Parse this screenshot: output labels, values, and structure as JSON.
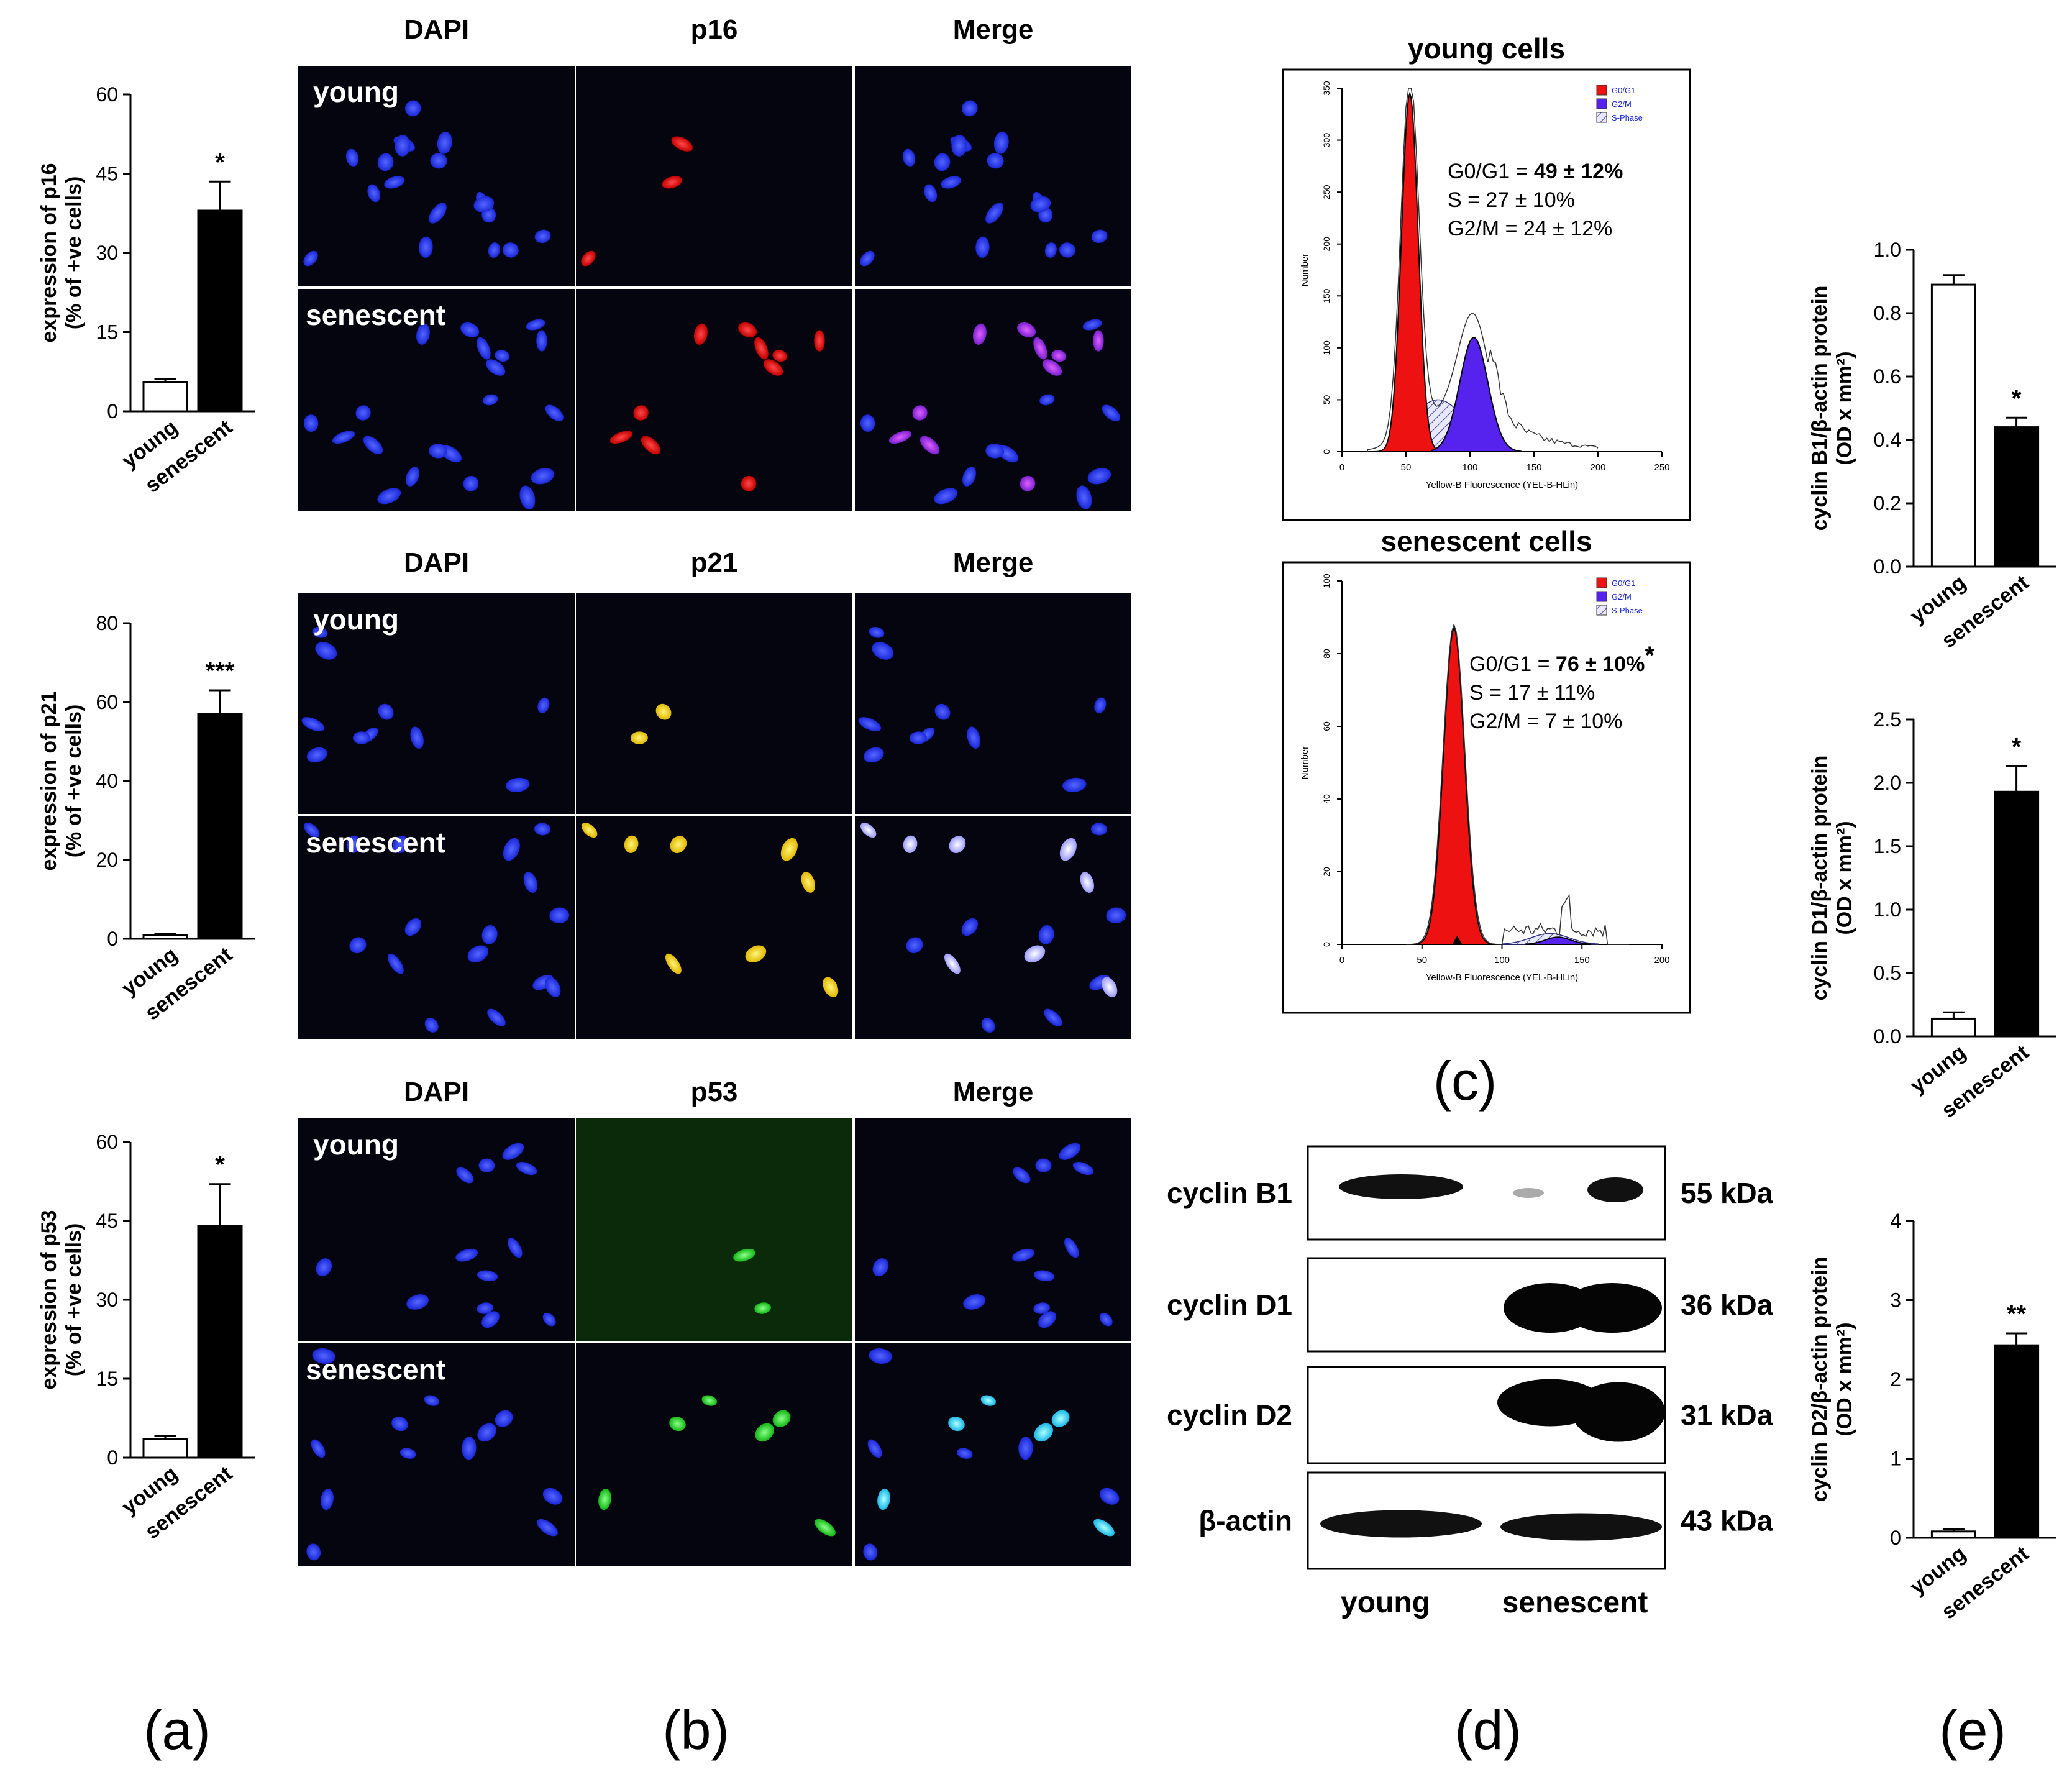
{
  "panel_letters": {
    "a": "(a)",
    "b": "(b)",
    "c": "(c)",
    "d": "(d)",
    "e": "(e)"
  },
  "microscopy": {
    "col_headers": [
      [
        "DAPI",
        "p16",
        "Merge"
      ],
      [
        "DAPI",
        "p21",
        "Merge"
      ],
      [
        "DAPI",
        "p53",
        "Merge"
      ]
    ],
    "row_labels": [
      "young",
      "senescent"
    ],
    "colors": {
      "DAPI": "#2a3cf0",
      "p16": "#ff1a1a",
      "p21": "#ffe000",
      "p53": "#22ee22",
      "merge_p16": "#c23cf0",
      "merge_p21": "#c8c8ff",
      "merge_p53": "#33ddff"
    }
  },
  "flow_cytometry": [
    {
      "title": "young cells",
      "legend": [
        "G0/G1",
        "G2/M",
        "S-Phase"
      ],
      "stats": [
        "G0/G1 = ",
        "49 ± 12%",
        "S = 27 ± 10%",
        "G2/M = 24 ± 12%"
      ],
      "ylabel": "Number",
      "xlabel": "Yellow-B Fluorescence (YEL-B-HLin)",
      "xticks": [
        "0",
        "50",
        "100",
        "150",
        "200",
        "250"
      ],
      "yticks": [
        "0",
        "50",
        "100",
        "150",
        "200",
        "250",
        "300",
        "350"
      ]
    },
    {
      "title": "senescent cells",
      "legend": [
        "G0/G1",
        "G2/M",
        "S-Phase"
      ],
      "stats": [
        "G0/G1 = ",
        "76 ± 10%",
        "S = 17 ± 11%",
        "G2/M = 7 ± 10%"
      ],
      "star": "*",
      "ylabel": "Number",
      "xlabel": "Yellow-B Fluorescence (YEL-B-HLin)",
      "xticks": [
        "0",
        "50",
        "100",
        "150",
        "200"
      ],
      "yticks": [
        "0",
        "20",
        "40",
        "60",
        "80",
        "100"
      ]
    }
  ],
  "western_blot": {
    "bands": [
      {
        "name": "cyclin B1",
        "kda": "55 kDa"
      },
      {
        "name": "cyclin D1",
        "kda": "36 kDa"
      },
      {
        "name": "cyclin D2",
        "kda": "31 kDa"
      },
      {
        "name": "β-actin",
        "kda": "43 kDa"
      }
    ],
    "lanes": [
      "young",
      "senescent"
    ]
  },
  "chart_data": [
    {
      "type": "bar",
      "ylabel": "expression of p16\n(% of +ve cells)",
      "categories": [
        "young",
        "senescent"
      ],
      "values": [
        5.5,
        38
      ],
      "errors": [
        0.6,
        5.5
      ],
      "ylim": [
        0,
        60
      ],
      "yticks": [
        "0",
        "15",
        "30",
        "45",
        "60"
      ],
      "significance": "*"
    },
    {
      "type": "bar",
      "ylabel": "expression of p21\n(% of +ve cells)",
      "categories": [
        "young",
        "senescent"
      ],
      "values": [
        1,
        57
      ],
      "errors": [
        0.3,
        6
      ],
      "ylim": [
        0,
        80
      ],
      "yticks": [
        "0",
        "20",
        "40",
        "60",
        "80"
      ],
      "significance": "***"
    },
    {
      "type": "bar",
      "ylabel": "expression of p53\n(% of +ve cells)",
      "categories": [
        "young",
        "senescent"
      ],
      "values": [
        3.5,
        44
      ],
      "errors": [
        0.7,
        8
      ],
      "ylim": [
        0,
        60
      ],
      "yticks": [
        "0",
        "15",
        "30",
        "45",
        "60"
      ],
      "significance": "*"
    },
    {
      "type": "bar",
      "ylabel": "cyclin B1/β-actin protein\n(OD x mm²)",
      "categories": [
        "young",
        "senescent"
      ],
      "values": [
        0.89,
        0.44
      ],
      "errors": [
        0.03,
        0.03
      ],
      "ylim": [
        0,
        1.0
      ],
      "yticks": [
        "0.0",
        "0.2",
        "0.4",
        "0.6",
        "0.8",
        "1.0"
      ],
      "significance": "*"
    },
    {
      "type": "bar",
      "ylabel": "cyclin D1/β-actin protein\n(OD x mm²)",
      "categories": [
        "young",
        "senescent"
      ],
      "values": [
        0.14,
        1.93
      ],
      "errors": [
        0.05,
        0.2
      ],
      "ylim": [
        0,
        2.5
      ],
      "yticks": [
        "0.0",
        "0.5",
        "1.0",
        "1.5",
        "2.0",
        "2.5"
      ],
      "significance": "*"
    },
    {
      "type": "bar",
      "ylabel": "cyclin D2/β-actin protein\n(OD x mm²)",
      "categories": [
        "young",
        "senescent"
      ],
      "values": [
        0.08,
        2.43
      ],
      "errors": [
        0.03,
        0.15
      ],
      "ylim": [
        0,
        4
      ],
      "yticks": [
        "0",
        "1",
        "2",
        "3",
        "4"
      ],
      "significance": "**"
    }
  ]
}
